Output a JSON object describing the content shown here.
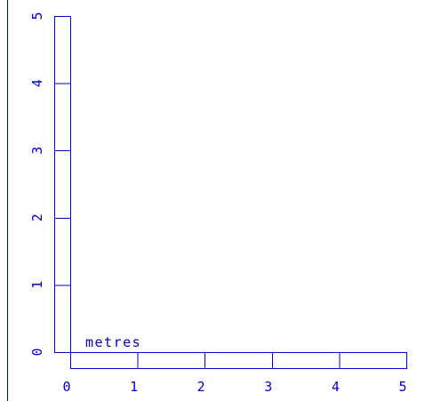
{
  "scale": {
    "unit_label": "metres",
    "line_color": "#0000cc",
    "x_ticks": [
      "0",
      "1",
      "2",
      "3",
      "4",
      "5"
    ],
    "y_ticks": [
      "0",
      "1",
      "2",
      "3",
      "4",
      "5"
    ],
    "x_range_m": [
      0,
      5
    ],
    "y_range_m": [
      0,
      5
    ],
    "segment_length_m": 1
  }
}
